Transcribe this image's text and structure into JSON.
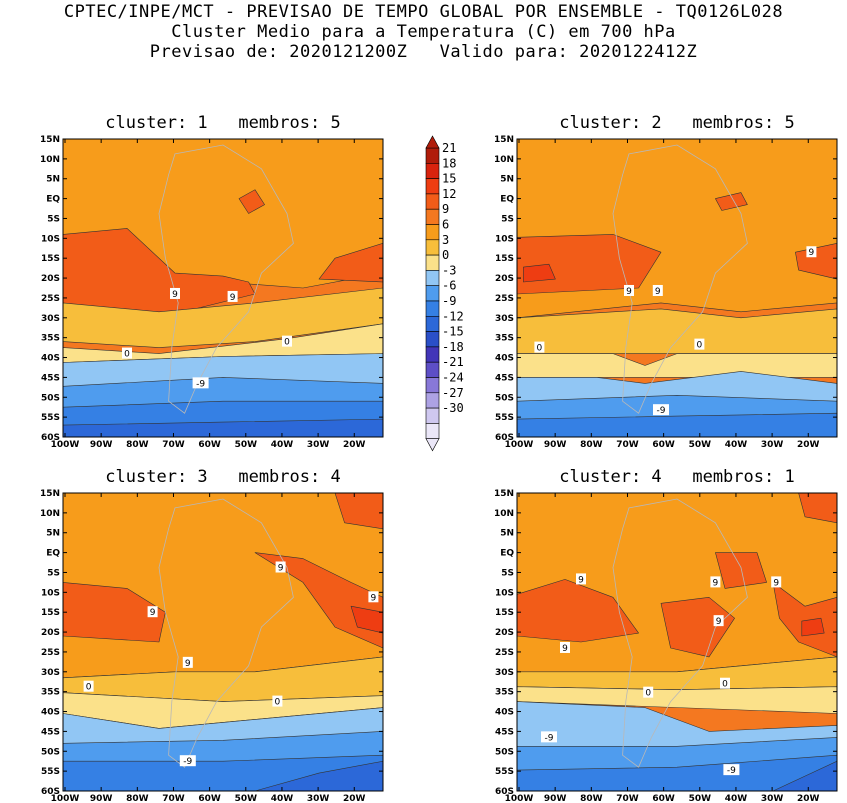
{
  "header": {
    "line1": "CPTEC/INPE/MCT - PREVISAO DE TEMPO GLOBAL POR ENSEMBLE - TQ0126L028",
    "line2": "Cluster Medio para a Temperatura (C) em 700 hPa",
    "line3": "Previsao de: 2020121200Z   Valido para: 2020122412Z"
  },
  "panels": [
    {
      "title": "cluster: 1   membros: 5",
      "labels": [
        "9",
        "9",
        "0",
        "0",
        "-9"
      ]
    },
    {
      "title": "cluster: 2   membros: 5",
      "labels": [
        "9",
        "9",
        "9",
        "0",
        "0",
        "-9"
      ]
    },
    {
      "title": "cluster: 3   membros: 4",
      "labels": [
        "9",
        "9",
        "9",
        "9",
        "0",
        "0",
        "-9"
      ]
    },
    {
      "title": "cluster: 4   membros: 1",
      "labels": [
        "9",
        "9",
        "9",
        "9",
        "9",
        "0",
        "0",
        "-9",
        "-9"
      ]
    }
  ],
  "map": {
    "lat_labels": [
      "15N",
      "10N",
      "5N",
      "EQ",
      "5S",
      "10S",
      "15S",
      "20S",
      "25S",
      "30S",
      "35S",
      "40S",
      "45S",
      "50S",
      "55S",
      "60S"
    ],
    "lon_labels": [
      "100W",
      "90W",
      "80W",
      "70W",
      "60W",
      "50W",
      "40W",
      "30W",
      "20W"
    ]
  },
  "colorbar": {
    "labels": [
      "21",
      "18",
      "15",
      "12",
      "9",
      "6",
      "3",
      "0",
      "-3",
      "-6",
      "-9",
      "-12",
      "-15",
      "-18",
      "-21",
      "-24",
      "-27",
      "-30"
    ],
    "colors": [
      "#b01c0a",
      "#d8230e",
      "#ee3d12",
      "#f25c18",
      "#f47820",
      "#f79c1b",
      "#f7be3b",
      "#fbe18a",
      "#91c6f4",
      "#4f9cee",
      "#3580e4",
      "#2c68d8",
      "#2a4fc8",
      "#4235b8",
      "#5d4ec6",
      "#8878d8",
      "#ada2e4",
      "#cfc8f0",
      "#ebe7f8"
    ]
  }
}
